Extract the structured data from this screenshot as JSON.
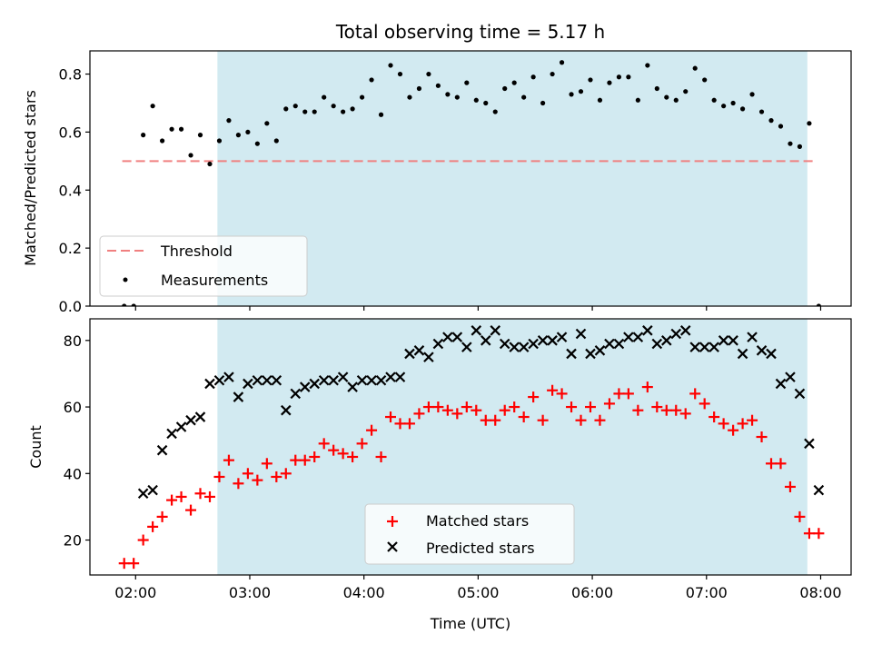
{
  "chart_data": [
    {
      "type": "scatter",
      "title": "Total observing time = 5.17 h",
      "xlabel": "",
      "ylabel": "Matched/Predicted stars",
      "xlim": [
        "01:36",
        "08:16"
      ],
      "ylim": [
        0,
        0.88
      ],
      "yticks": [
        "0.0",
        "0.2",
        "0.4",
        "0.6",
        "0.8"
      ],
      "shaded_region": {
        "start": "02:43",
        "end": "07:53",
        "color": "#add8e6"
      },
      "threshold": {
        "name": "Threshold",
        "value": 0.5,
        "x_range": [
          "01:53",
          "07:56"
        ],
        "color": "#f08080"
      },
      "legend": {
        "position": "lower-left",
        "entries": [
          "Threshold",
          "Measurements"
        ]
      },
      "series": [
        {
          "name": "Measurements",
          "color": "#000000",
          "x": [
            "01:54",
            "01:59",
            "02:04",
            "02:09",
            "02:14",
            "02:19",
            "02:24",
            "02:29",
            "02:34",
            "02:39",
            "02:44",
            "02:49",
            "02:54",
            "02:59",
            "03:04",
            "03:09",
            "03:14",
            "03:19",
            "03:24",
            "03:29",
            "03:34",
            "03:39",
            "03:44",
            "03:49",
            "03:54",
            "03:59",
            "04:04",
            "04:09",
            "04:14",
            "04:19",
            "04:24",
            "04:29",
            "04:34",
            "04:39",
            "04:44",
            "04:49",
            "04:54",
            "04:59",
            "05:04",
            "05:09",
            "05:14",
            "05:19",
            "05:24",
            "05:29",
            "05:34",
            "05:39",
            "05:44",
            "05:49",
            "05:54",
            "05:59",
            "06:04",
            "06:09",
            "06:14",
            "06:19",
            "06:24",
            "06:29",
            "06:34",
            "06:39",
            "06:44",
            "06:49",
            "06:54",
            "06:59",
            "07:04",
            "07:09",
            "07:14",
            "07:19",
            "07:24",
            "07:29",
            "07:34",
            "07:39",
            "07:44",
            "07:49",
            "07:54",
            "07:59"
          ],
          "y": [
            0.0,
            0.0,
            0.59,
            0.69,
            0.57,
            0.61,
            0.61,
            0.52,
            0.59,
            0.49,
            0.57,
            0.64,
            0.59,
            0.6,
            0.56,
            0.63,
            0.57,
            0.68,
            0.69,
            0.67,
            0.67,
            0.72,
            0.69,
            0.67,
            0.68,
            0.72,
            0.78,
            0.66,
            0.83,
            0.8,
            0.72,
            0.75,
            0.8,
            0.76,
            0.73,
            0.72,
            0.77,
            0.71,
            0.7,
            0.67,
            0.75,
            0.77,
            0.72,
            0.79,
            0.7,
            0.8,
            0.84,
            0.73,
            0.74,
            0.78,
            0.71,
            0.77,
            0.79,
            0.79,
            0.71,
            0.83,
            0.75,
            0.72,
            0.71,
            0.74,
            0.82,
            0.78,
            0.71,
            0.69,
            0.7,
            0.68,
            0.73,
            0.67,
            0.64,
            0.62,
            0.56,
            0.55,
            0.63,
            0.0
          ]
        }
      ]
    },
    {
      "type": "scatter",
      "title": "",
      "xlabel": "Time (UTC)",
      "ylabel": "Count",
      "xlim": [
        "01:36",
        "08:16"
      ],
      "ylim": [
        9.5,
        86.5
      ],
      "yticks": [
        "20",
        "40",
        "60",
        "80"
      ],
      "xticks": [
        "02:00",
        "03:00",
        "04:00",
        "05:00",
        "06:00",
        "07:00",
        "08:00"
      ],
      "shaded_region": {
        "start": "02:43",
        "end": "07:53",
        "color": "#add8e6"
      },
      "legend": {
        "position": "lower-center",
        "entries": [
          "Matched stars",
          "Predicted stars"
        ]
      },
      "x": [
        "01:54",
        "01:59",
        "02:04",
        "02:09",
        "02:14",
        "02:19",
        "02:24",
        "02:29",
        "02:34",
        "02:39",
        "02:44",
        "02:49",
        "02:54",
        "02:59",
        "03:04",
        "03:09",
        "03:14",
        "03:19",
        "03:24",
        "03:29",
        "03:34",
        "03:39",
        "03:44",
        "03:49",
        "03:54",
        "03:59",
        "04:04",
        "04:09",
        "04:14",
        "04:19",
        "04:24",
        "04:29",
        "04:34",
        "04:39",
        "04:44",
        "04:49",
        "04:54",
        "04:59",
        "05:04",
        "05:09",
        "05:14",
        "05:19",
        "05:24",
        "05:29",
        "05:34",
        "05:39",
        "05:44",
        "05:49",
        "05:54",
        "05:59",
        "06:04",
        "06:09",
        "06:14",
        "06:19",
        "06:24",
        "06:29",
        "06:34",
        "06:39",
        "06:44",
        "06:49",
        "06:54",
        "06:59",
        "07:04",
        "07:09",
        "07:14",
        "07:19",
        "07:24",
        "07:29",
        "07:34",
        "07:39",
        "07:44",
        "07:49",
        "07:54",
        "07:59"
      ],
      "series": [
        {
          "name": "Matched stars",
          "marker": "+",
          "color": "#ff0000",
          "values": [
            13,
            13,
            20,
            24,
            27,
            32,
            33,
            29,
            34,
            33,
            39,
            44,
            37,
            40,
            38,
            43,
            39,
            40,
            44,
            44,
            45,
            49,
            47,
            46,
            45,
            49,
            53,
            45,
            57,
            55,
            55,
            58,
            60,
            60,
            59,
            58,
            60,
            59,
            56,
            56,
            59,
            60,
            57,
            63,
            56,
            65,
            64,
            60,
            56,
            60,
            56,
            61,
            64,
            64,
            59,
            66,
            60,
            59,
            59,
            58,
            64,
            61,
            57,
            55,
            53,
            55,
            56,
            51,
            43,
            43,
            36,
            27,
            22,
            22
          ]
        },
        {
          "name": "Predicted stars",
          "marker": "x",
          "color": "#000000",
          "values": [
            null,
            null,
            34,
            35,
            47,
            52,
            54,
            56,
            57,
            67,
            68,
            69,
            63,
            67,
            68,
            68,
            68,
            59,
            64,
            66,
            67,
            68,
            68,
            69,
            66,
            68,
            68,
            68,
            69,
            69,
            76,
            77,
            75,
            79,
            81,
            81,
            78,
            83,
            80,
            83,
            79,
            78,
            78,
            79,
            80,
            80,
            81,
            76,
            82,
            76,
            77,
            79,
            79,
            81,
            81,
            83,
            79,
            80,
            82,
            83,
            78,
            78,
            78,
            80,
            80,
            76,
            81,
            77,
            76,
            67,
            69,
            64,
            49,
            35
          ]
        }
      ]
    }
  ]
}
